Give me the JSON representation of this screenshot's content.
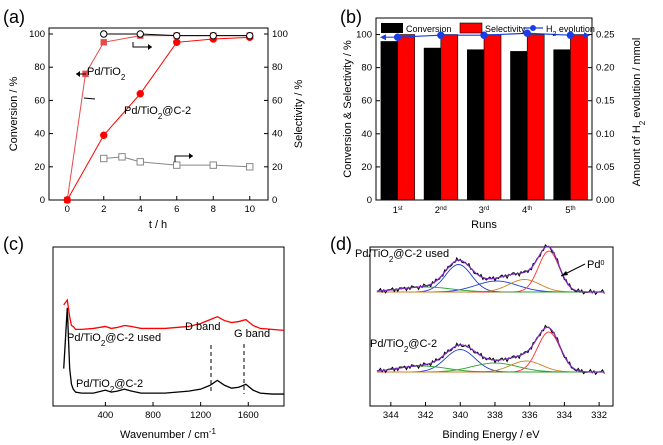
{
  "panels": {
    "a": {
      "label": "(a)"
    },
    "b": {
      "label": "(b)"
    },
    "c": {
      "label": "(c)"
    },
    "d": {
      "label": "(d)"
    }
  },
  "chart_data": [
    {
      "id": "a",
      "type": "line",
      "xlabel": "t / h",
      "ylabel": "Conversion / %",
      "y2label": "Selectivity / %",
      "xlim": [
        -1,
        11
      ],
      "ylim": [
        0,
        100
      ],
      "y2lim": [
        0,
        100
      ],
      "xticks": [
        0,
        2,
        4,
        6,
        8,
        10
      ],
      "yticks": [
        0,
        20,
        40,
        60,
        80,
        100
      ],
      "annotations": [
        "Pd/TiO2",
        "Pd/TiO2@C-2"
      ],
      "series": [
        {
          "name": "Pd/TiO2",
          "kind": "conversion",
          "color": "#e8494a",
          "marker": "filled-square",
          "x": [
            0,
            1,
            2,
            4,
            6,
            8,
            10
          ],
          "y": [
            0,
            76,
            95,
            99,
            99,
            99,
            99
          ]
        },
        {
          "name": "Pd/TiO2@C-2",
          "kind": "conversion",
          "color": "#ff0000",
          "marker": "filled-circle",
          "x": [
            0,
            2,
            4,
            6,
            8,
            10
          ],
          "y": [
            0,
            39,
            64,
            95,
            97,
            98
          ]
        },
        {
          "name": "",
          "kind": "selectivity",
          "color": "#000000",
          "marker": "open-circle",
          "x": [
            2,
            4,
            6,
            8,
            10
          ],
          "y": [
            100,
            100,
            99,
            99,
            99
          ]
        },
        {
          "name": "",
          "kind": "selectivity",
          "color": "#888888",
          "marker": "open-square",
          "x": [
            2,
            3,
            4,
            6,
            8,
            10
          ],
          "y": [
            25,
            26,
            23,
            21,
            21,
            20
          ]
        }
      ]
    },
    {
      "id": "b",
      "type": "bar",
      "categories": [
        "1st",
        "2nd",
        "3rd",
        "4th",
        "5th"
      ],
      "category_labels": [
        {
          "base": "1",
          "sup": "st"
        },
        {
          "base": "2",
          "sup": "nd"
        },
        {
          "base": "3",
          "sup": "rd"
        },
        {
          "base": "4",
          "sup": "th"
        },
        {
          "base": "5",
          "sup": "th"
        }
      ],
      "xlabel": "Runs",
      "ylabel": "Conversion & Selectivity / %",
      "y2label": "Amount of H2 evolution / mmol",
      "ylim": [
        0,
        110
      ],
      "y2lim": [
        0,
        0.275
      ],
      "yticks": [
        0,
        20,
        40,
        60,
        80,
        100
      ],
      "y2ticks": [
        0.0,
        0.05,
        0.1,
        0.15,
        0.2,
        0.25
      ],
      "legend_position": "top",
      "series": [
        {
          "name": "Conversion",
          "color": "#000000",
          "values": [
            96,
            92,
            91,
            90,
            91
          ]
        },
        {
          "name": "Selectivity",
          "color": "#ff0000",
          "values": [
            100,
            100,
            100,
            100,
            100
          ]
        },
        {
          "name": "H2 evolution",
          "axis": "right",
          "color": "#1a3de6",
          "marker": "filled-circle",
          "values": [
            0.246,
            0.249,
            0.249,
            0.252,
            0.249
          ]
        }
      ]
    },
    {
      "id": "c",
      "type": "line",
      "xlabel": "Wavenumber / cm-1",
      "xlim": [
        -40,
        1900
      ],
      "xticks": [
        400,
        800,
        1200,
        1600
      ],
      "annotations": [
        "Pd/TiO2@C-2 used",
        "Pd/TiO2@C-2",
        "D band",
        "G band"
      ],
      "markers": [
        {
          "label": "D band",
          "x": 1340
        },
        {
          "label": "G band",
          "x": 1580
        }
      ],
      "series": [
        {
          "name": "Pd/TiO2@C-2 used",
          "color": "#ff0000",
          "x": [
            50,
            80,
            100,
            115,
            130,
            150,
            200,
            300,
            400,
            450,
            500,
            560,
            620,
            700,
            800,
            900,
            1000,
            1100,
            1200,
            1280,
            1340,
            1400,
            1460,
            1520,
            1580,
            1640,
            1700,
            1800,
            1900
          ],
          "y": [
            0.95,
            1.0,
            0.83,
            0.74,
            0.73,
            0.7,
            0.7,
            0.71,
            0.73,
            0.71,
            0.72,
            0.74,
            0.73,
            0.71,
            0.71,
            0.71,
            0.72,
            0.73,
            0.76,
            0.8,
            0.83,
            0.79,
            0.77,
            0.78,
            0.8,
            0.74,
            0.71,
            0.7,
            0.69
          ]
        },
        {
          "name": "Pd/TiO2@C-2",
          "color": "#000000",
          "x": [
            50,
            80,
            100,
            115,
            130,
            150,
            200,
            300,
            400,
            450,
            500,
            560,
            620,
            700,
            800,
            900,
            1000,
            1100,
            1200,
            1280,
            1340,
            1400,
            1460,
            1520,
            1580,
            1640,
            1700,
            1800,
            1900
          ],
          "y": [
            0.3,
            0.92,
            0.3,
            0.14,
            0.09,
            0.06,
            0.05,
            0.05,
            0.08,
            0.06,
            0.07,
            0.09,
            0.07,
            0.05,
            0.05,
            0.05,
            0.06,
            0.07,
            0.09,
            0.13,
            0.18,
            0.13,
            0.1,
            0.11,
            0.14,
            0.08,
            0.05,
            0.04,
            0.04
          ]
        }
      ]
    },
    {
      "id": "d",
      "type": "line",
      "xlabel": "Binding Energy / eV",
      "xlim": [
        345.2,
        331.2
      ],
      "xticks": [
        344,
        342,
        340,
        338,
        336,
        334,
        332
      ],
      "x_reversed": true,
      "annotations": [
        "Pd/TiO2@C-2 used",
        "Pd/TiO2@C-2",
        "Pd0"
      ],
      "series": [
        {
          "name": "Pd/TiO2@C-2 used",
          "color": "#000000",
          "fit_color": "#7b2cc4",
          "components": [
            {
              "color": "#1f3fd6",
              "center": 340.1,
              "height": 0.55,
              "width": 0.75
            },
            {
              "color": "#1f3fd6",
              "center": 337.9,
              "height": 0.22,
              "width": 1.2
            },
            {
              "color": "#ff3030",
              "center": 334.9,
              "height": 0.82,
              "width": 0.6
            },
            {
              "color": "#d08020",
              "center": 336.3,
              "height": 0.25,
              "width": 0.9
            },
            {
              "color": "#2ca02c",
              "center": 342.0,
              "height": 0.1,
              "width": 1.5
            }
          ]
        },
        {
          "name": "Pd/TiO2@C-2",
          "color": "#000000",
          "fit_color": "#7b2cc4",
          "components": [
            {
              "color": "#1f3fd6",
              "center": 340.0,
              "height": 0.45,
              "width": 0.85
            },
            {
              "color": "#2ca02c",
              "center": 338.0,
              "height": 0.18,
              "width": 1.3
            },
            {
              "color": "#ff3030",
              "center": 334.9,
              "height": 0.8,
              "width": 0.65
            },
            {
              "color": "#d08020",
              "center": 336.2,
              "height": 0.22,
              "width": 0.9
            },
            {
              "color": "#2ca02c",
              "center": 342.2,
              "height": 0.12,
              "width": 1.4
            }
          ]
        }
      ]
    }
  ]
}
